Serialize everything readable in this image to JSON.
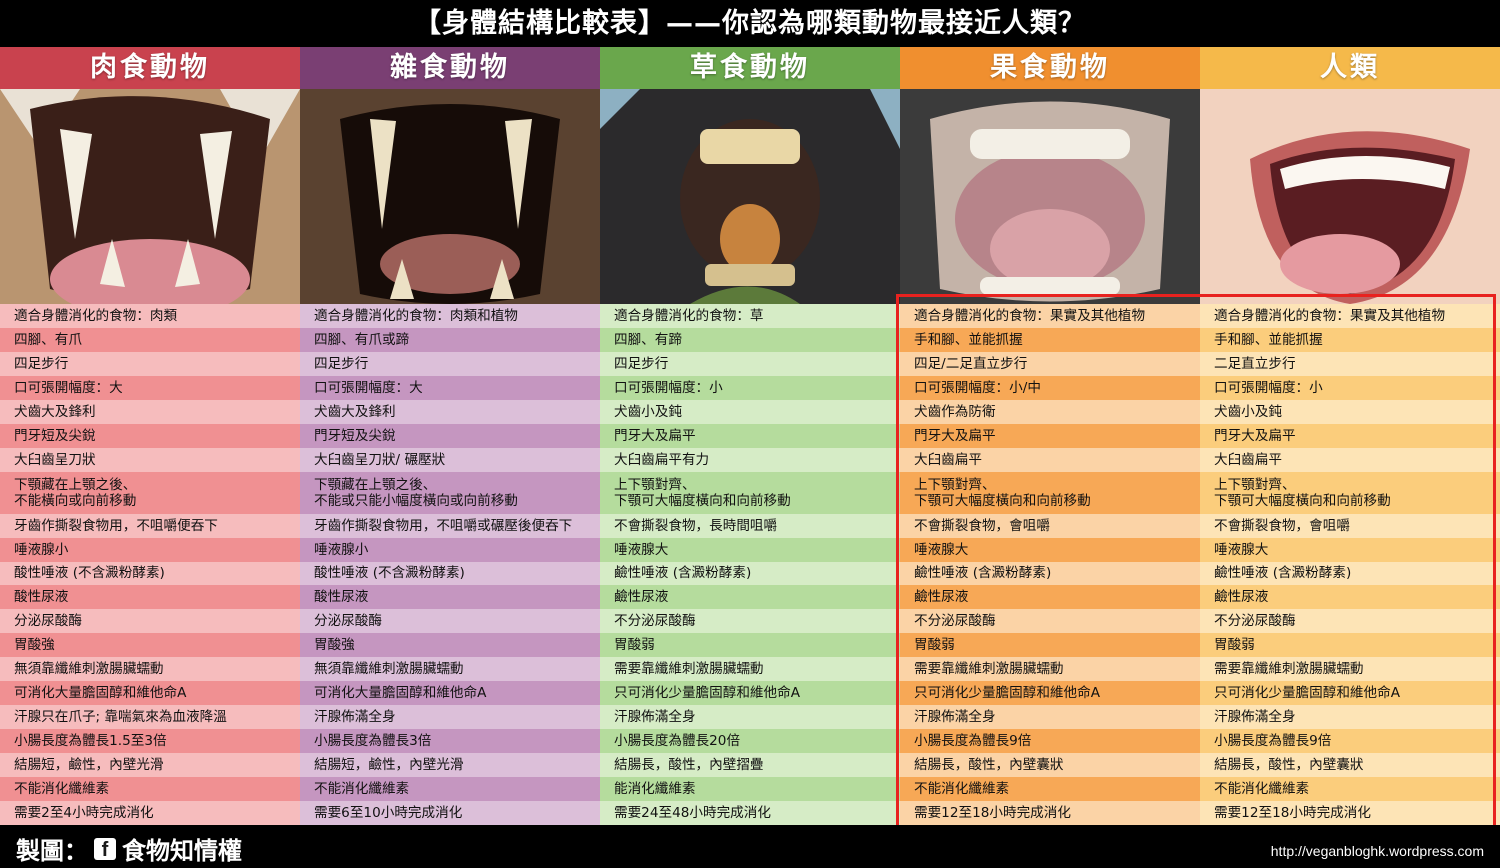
{
  "title": "【身體結構比較表】——你認為哪類動物最接近人類？",
  "columns": [
    {
      "label": "肉食動物",
      "header_color": "#c9424e",
      "row_colors": [
        "#f6bcbd",
        "#f09092"
      ],
      "rows": [
        "適合身體消化的食物：肉類",
        "四腳、有爪",
        "四足步行",
        "口可張開幅度：大",
        "犬齒大及鋒利",
        "門牙短及尖銳",
        "大臼齒呈刀狀",
        "下顎藏在上顎之後、\n不能橫向或向前移動",
        "牙齒作撕裂食物用，不咀嚼便吞下",
        "唾液腺小",
        "酸性唾液 (不含澱粉酵素)",
        "酸性尿液",
        "分泌尿酸酶",
        "胃酸強",
        "無須靠纖維刺激腸臟蠕動",
        "可消化大量膽固醇和維他命A",
        "汗腺只在爪子; 靠喘氣來為血液降溫",
        "小腸長度為體長1.5至3倍",
        "結腸短，鹼性，內壁光滑",
        "不能消化纖維素",
        "需要2至4小時完成消化"
      ]
    },
    {
      "label": "雜食動物",
      "header_color": "#7a3f73",
      "row_colors": [
        "#dcbfd9",
        "#c596c0"
      ],
      "rows": [
        "適合身體消化的食物：肉類和植物",
        "四腳、有爪或蹄",
        "四足步行",
        "口可張開幅度：大",
        "犬齒大及鋒利",
        "門牙短及尖銳",
        "大臼齒呈刀狀/ 碾壓狀",
        "下顎藏在上顎之後、\n不能或只能小幅度橫向或向前移動",
        "牙齒作撕裂食物用，不咀嚼或碾壓後便吞下",
        "唾液腺小",
        "酸性唾液 (不含澱粉酵素)",
        "酸性尿液",
        "分泌尿酸酶",
        "胃酸強",
        "無須靠纖維刺激腸臟蠕動",
        "可消化大量膽固醇和維他命A",
        "汗腺佈滿全身",
        "小腸長度為體長3倍",
        "結腸短，鹼性，內壁光滑",
        "不能消化纖維素",
        "需要6至10小時完成消化"
      ]
    },
    {
      "label": "草食動物",
      "header_color": "#6aa74c",
      "row_colors": [
        "#d6ecc6",
        "#b5dc9d"
      ],
      "rows": [
        "適合身體消化的食物：草",
        "四腳、有蹄",
        "四足步行",
        "口可張開幅度：小",
        "犬齒小及鈍",
        "門牙大及扁平",
        "大臼齒扁平有力",
        "上下顎對齊、\n下顎可大幅度橫向和向前移動",
        "不會撕裂食物，長時間咀嚼",
        "唾液腺大",
        "鹼性唾液 (含澱粉酵素)",
        "鹼性尿液",
        "不分泌尿酸酶",
        "胃酸弱",
        "需要靠纖維刺激腸臟蠕動",
        "只可消化少量膽固醇和維他命A",
        "汗腺佈滿全身",
        "小腸長度為體長20倍",
        "結腸長，酸性，內壁摺疊",
        "能消化纖維素",
        "需要24至48小時完成消化"
      ]
    },
    {
      "label": "果食動物",
      "header_color": "#f08f2f",
      "row_colors": [
        "#fbd3a6",
        "#f7a856"
      ],
      "rows": [
        "適合身體消化的食物：果實及其他植物",
        "手和腳、並能抓握",
        "四足/二足直立步行",
        "口可張開幅度：小/中",
        "犬齒作為防衛",
        "門牙大及扁平",
        "大臼齒扁平",
        "上下顎對齊、\n下顎可大幅度橫向和向前移動",
        "不會撕裂食物，會咀嚼",
        "唾液腺大",
        "鹼性唾液 (含澱粉酵素)",
        "鹼性尿液",
        "不分泌尿酸酶",
        "胃酸弱",
        "需要靠纖維刺激腸臟蠕動",
        "只可消化少量膽固醇和維他命A",
        "汗腺佈滿全身",
        "小腸長度為體長9倍",
        "結腸長，酸性，內壁囊狀",
        "不能消化纖維素",
        "需要12至18小時完成消化"
      ]
    },
    {
      "label": "人類",
      "header_color": "#f5b94a",
      "row_colors": [
        "#fde4b6",
        "#fbcd7c"
      ],
      "rows": [
        "適合身體消化的食物：果實及其他植物",
        "手和腳、並能抓握",
        "二足直立步行",
        "口可張開幅度：小",
        "犬齒小及鈍",
        "門牙大及扁平",
        "大臼齒扁平",
        "上下顎對齊、\n下顎可大幅度橫向和向前移動",
        "不會撕裂食物，會咀嚼",
        "唾液腺大",
        "鹼性唾液 (含澱粉酵素)",
        "鹼性尿液",
        "不分泌尿酸酶",
        "胃酸弱",
        "需要靠纖維刺激腸臟蠕動",
        "只可消化少量膽固醇和維他命A",
        "汗腺佈滿全身",
        "小腸長度為體長9倍",
        "結腸長，酸性，內壁囊狀",
        "不能消化纖維素",
        "需要12至18小時完成消化"
      ]
    }
  ],
  "tall_row_index": 7,
  "photos": [
    "tiger-mouth-icon",
    "bear-mouth-icon",
    "horse-mouth-icon",
    "chimpanzee-mouth-icon",
    "human-mouth-icon"
  ],
  "footer": {
    "credit": "製圖：",
    "fb_glyph": "f",
    "credit_name": "食物知情權",
    "url": "http://veganbloghk.wordpress.com"
  }
}
